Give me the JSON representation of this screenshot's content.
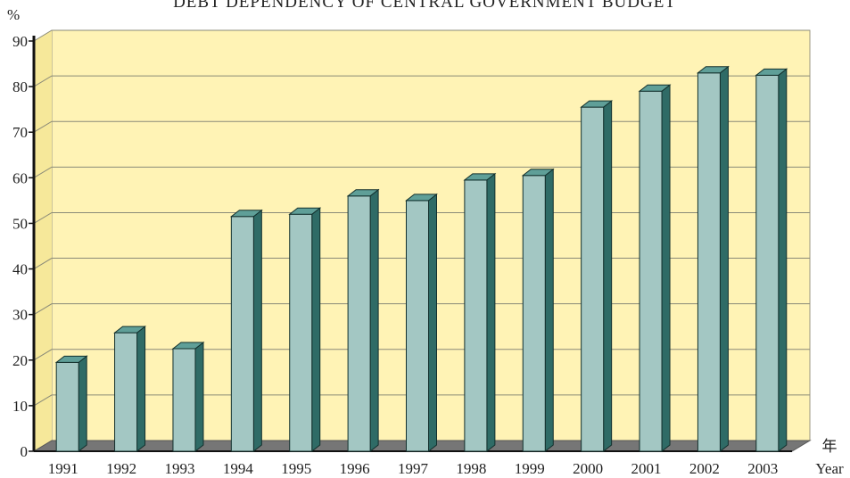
{
  "chart_data": {
    "type": "bar",
    "title": "DEBT DEPENDENCY OF CENTRAL GOVERNMENT BUDGET",
    "ylabel": "%",
    "xlabel_cn": "年",
    "xlabel": "Year",
    "categories": [
      "1991",
      "1992",
      "1993",
      "1994",
      "1995",
      "1996",
      "1997",
      "1998",
      "1999",
      "2000",
      "2001",
      "2002",
      "2003"
    ],
    "values": [
      19.5,
      26,
      22.5,
      51.5,
      52,
      56,
      55,
      59.5,
      60.5,
      75.5,
      79,
      83,
      82.5
    ],
    "ylim": [
      0,
      90
    ],
    "yticks": [
      0,
      10,
      20,
      30,
      40,
      50,
      60,
      70,
      80,
      90
    ],
    "grid": true,
    "colors": {
      "plot_background": "#fcf0a8",
      "back_wall": "#fff3b5",
      "floor": "#767676",
      "bar_front": "#a3c7c3",
      "bar_side": "#2f6b66",
      "bar_top": "#5f9f98",
      "gridline": "#8a8a78"
    }
  }
}
